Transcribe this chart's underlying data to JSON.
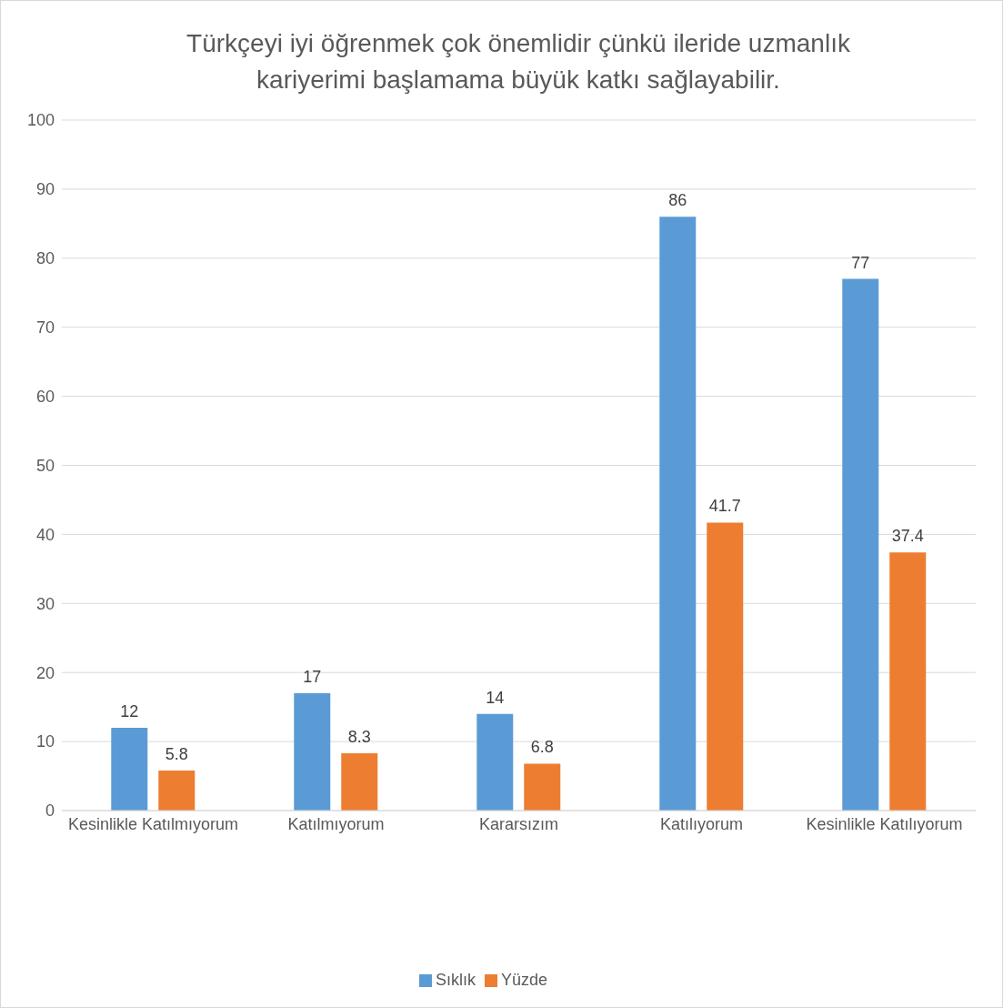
{
  "chart_data": {
    "type": "bar",
    "title": "Türkçeyi iyi öğrenmek çok önemlidir çünkü ileride uzmanlık kariyerimi başlamama büyük katkı sağlayabilir.",
    "categories": [
      "Kesinlikle Katılmıyorum",
      "Katılmıyorum",
      "Kararsızım",
      "Katılıyorum",
      "Kesinlikle Katılıyorum"
    ],
    "series": [
      {
        "name": "Sıklık",
        "color": "#5b9bd5",
        "values": [
          12,
          17,
          14,
          86,
          77
        ]
      },
      {
        "name": "Yüzde",
        "color": "#ed7d31",
        "values": [
          5.8,
          8.3,
          6.8,
          41.7,
          37.4
        ]
      }
    ],
    "ylim": [
      0,
      100
    ],
    "yticks": [
      0,
      10,
      20,
      30,
      40,
      50,
      60,
      70,
      80,
      90,
      100
    ],
    "grid": "y",
    "legend": "bottom",
    "data_labels": true
  }
}
